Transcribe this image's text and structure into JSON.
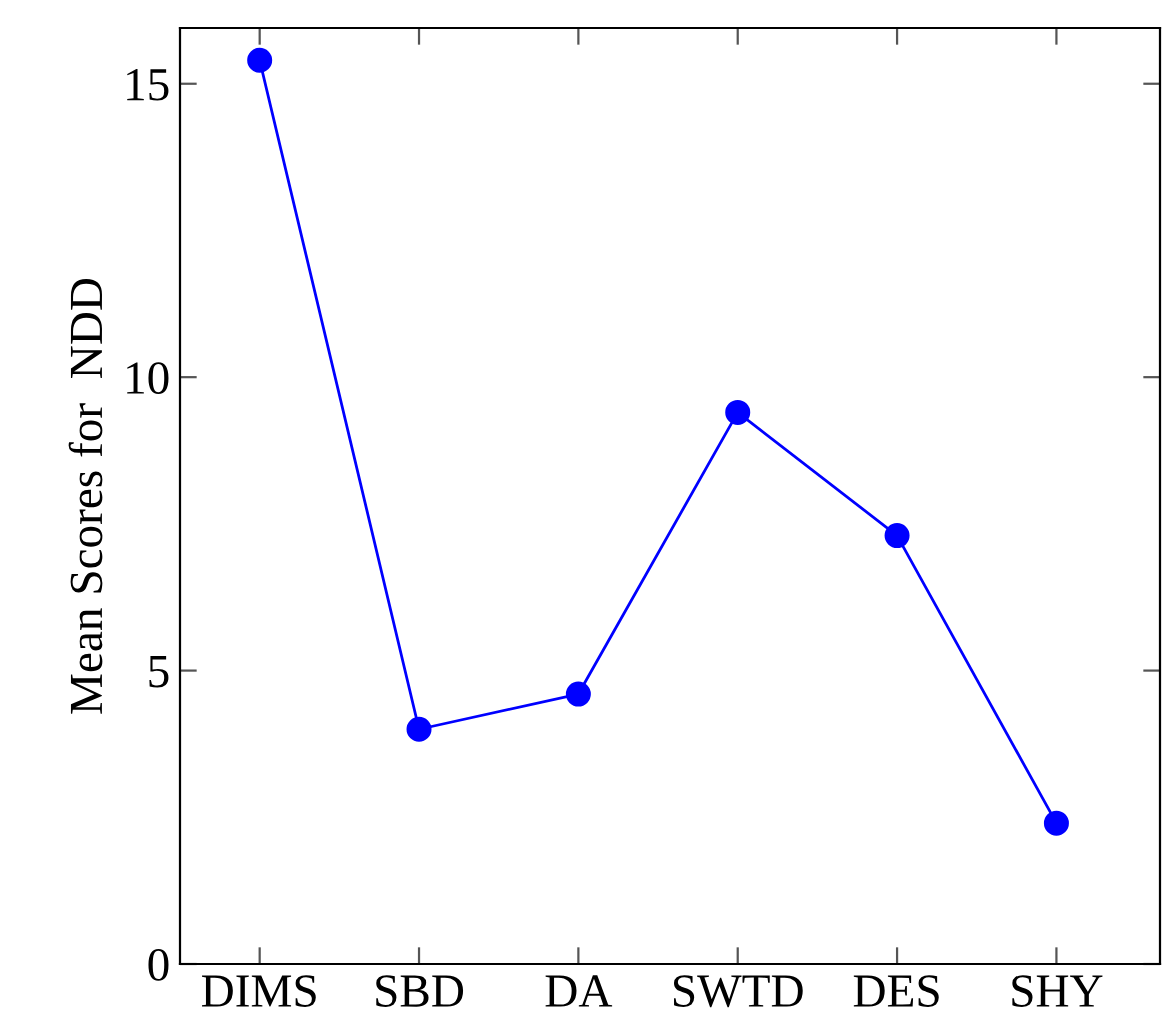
{
  "chart_data": {
    "type": "line",
    "ylabel": "Mean Scores for  NDD",
    "categories": [
      "DIMS",
      "SBD",
      "DA",
      "SWTD",
      "DES",
      "SHY"
    ],
    "series": [
      {
        "color": "#0000ff",
        "values": [
          15.4,
          4.0,
          4.6,
          9.4,
          7.3,
          2.4
        ]
      }
    ],
    "ylim": [
      0,
      15.95
    ],
    "yticks": [
      0,
      5,
      10,
      15
    ],
    "marker": "circle",
    "line_style": "solid",
    "grid": false,
    "legend": false
  }
}
